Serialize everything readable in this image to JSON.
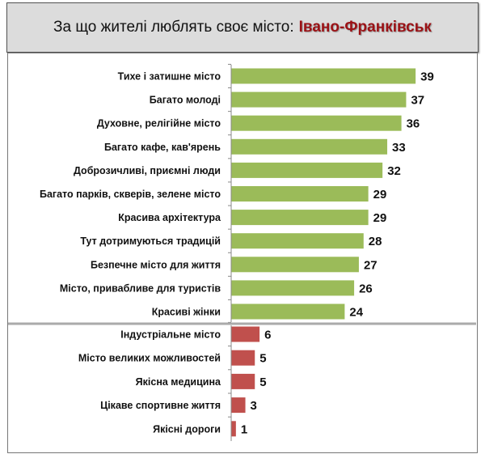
{
  "title": {
    "prefix": "За що жителі люблять своє місто:",
    "city": "Івано-Франківськ"
  },
  "chart_data": {
    "type": "bar",
    "orientation": "horizontal",
    "title": "За що жителі люблять своє місто: Івано-Франківськ",
    "colors": {
      "positive": "#9bbb59",
      "negative": "#c0504d"
    },
    "groups": [
      {
        "color": "#9bbb59",
        "categories": [
          "Тихе і затишне місто",
          "Багато молоді",
          "Духовне, релігійне місто",
          "Багато кафе, кав'ярень",
          "Доброзичливі, приємні люди",
          "Багато парків, скверів, зелене місто",
          "Красива архітектура",
          "Тут дотримуються традицій",
          "Безпечне місто для життя",
          "Місто, привабливе для туристів",
          "Красиві жінки"
        ],
        "values": [
          39,
          37,
          36,
          33,
          32,
          29,
          29,
          28,
          27,
          26,
          24
        ]
      },
      {
        "color": "#c0504d",
        "categories": [
          "Індустріальне місто",
          "Місто великих можливостей",
          "Якісна медицина",
          "Цікаве спортивне життя",
          "Якісні дороги"
        ],
        "values": [
          6,
          5,
          5,
          3,
          1
        ]
      }
    ],
    "xlim": [
      0,
      40
    ]
  }
}
